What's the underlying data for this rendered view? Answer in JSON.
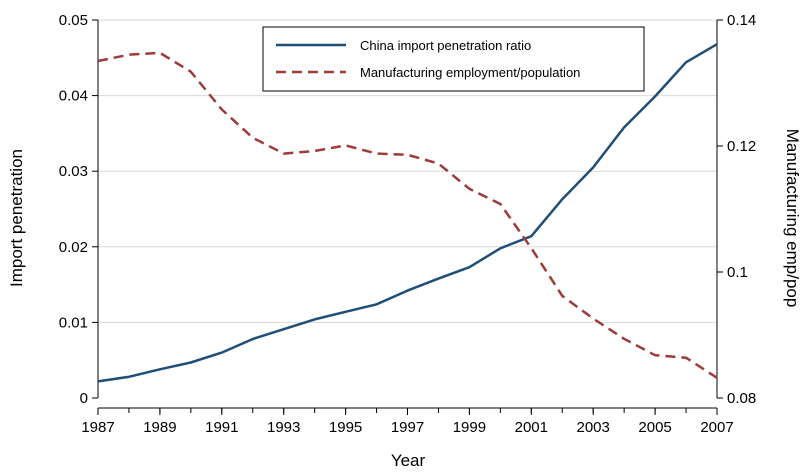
{
  "chart_data": {
    "type": "line",
    "title": "",
    "xlabel": "Year",
    "ylabel_left": "Import penetration",
    "ylabel_right": "Manufacturing emp/pop",
    "x": [
      1987,
      1988,
      1989,
      1990,
      1991,
      1992,
      1993,
      1994,
      1995,
      1996,
      1997,
      1998,
      1999,
      2000,
      2001,
      2002,
      2003,
      2004,
      2005,
      2006,
      2007
    ],
    "x_ticks": [
      "1987",
      "1989",
      "1991",
      "1993",
      "1995",
      "1997",
      "1999",
      "2001",
      "2003",
      "2005",
      "2007"
    ],
    "xlim": [
      1987,
      2007
    ],
    "y_left_ticks": [
      "0",
      "0.01",
      "0.02",
      "0.03",
      "0.04",
      "0.05"
    ],
    "y_left_lim": [
      0,
      0.05
    ],
    "y_right_ticks": [
      "0.08",
      "0.1",
      "0.12",
      "0.14"
    ],
    "y_right_lim": [
      0.08,
      0.14
    ],
    "grid": true,
    "legend_position": "top-center",
    "series": [
      {
        "name": "China import penetration ratio",
        "axis": "left",
        "color": "#1f4e79",
        "style": "solid",
        "values": [
          0.0022,
          0.0028,
          0.0038,
          0.0047,
          0.006,
          0.0078,
          0.0091,
          0.0104,
          0.0114,
          0.0124,
          0.0142,
          0.0158,
          0.0173,
          0.0198,
          0.0214,
          0.0263,
          0.0305,
          0.0358,
          0.0399,
          0.0444,
          0.0468
        ]
      },
      {
        "name": "Manufacturing employment/population",
        "axis": "right",
        "color": "#9e3a3a",
        "style": "dashed",
        "values": [
          0.1335,
          0.1345,
          0.1348,
          0.1318,
          0.1258,
          0.1213,
          0.1188,
          0.1192,
          0.1201,
          0.1188,
          0.1186,
          0.1172,
          0.1132,
          0.1108,
          0.1038,
          0.0962,
          0.0926,
          0.0894,
          0.0868,
          0.0864,
          0.0832
        ]
      }
    ]
  }
}
